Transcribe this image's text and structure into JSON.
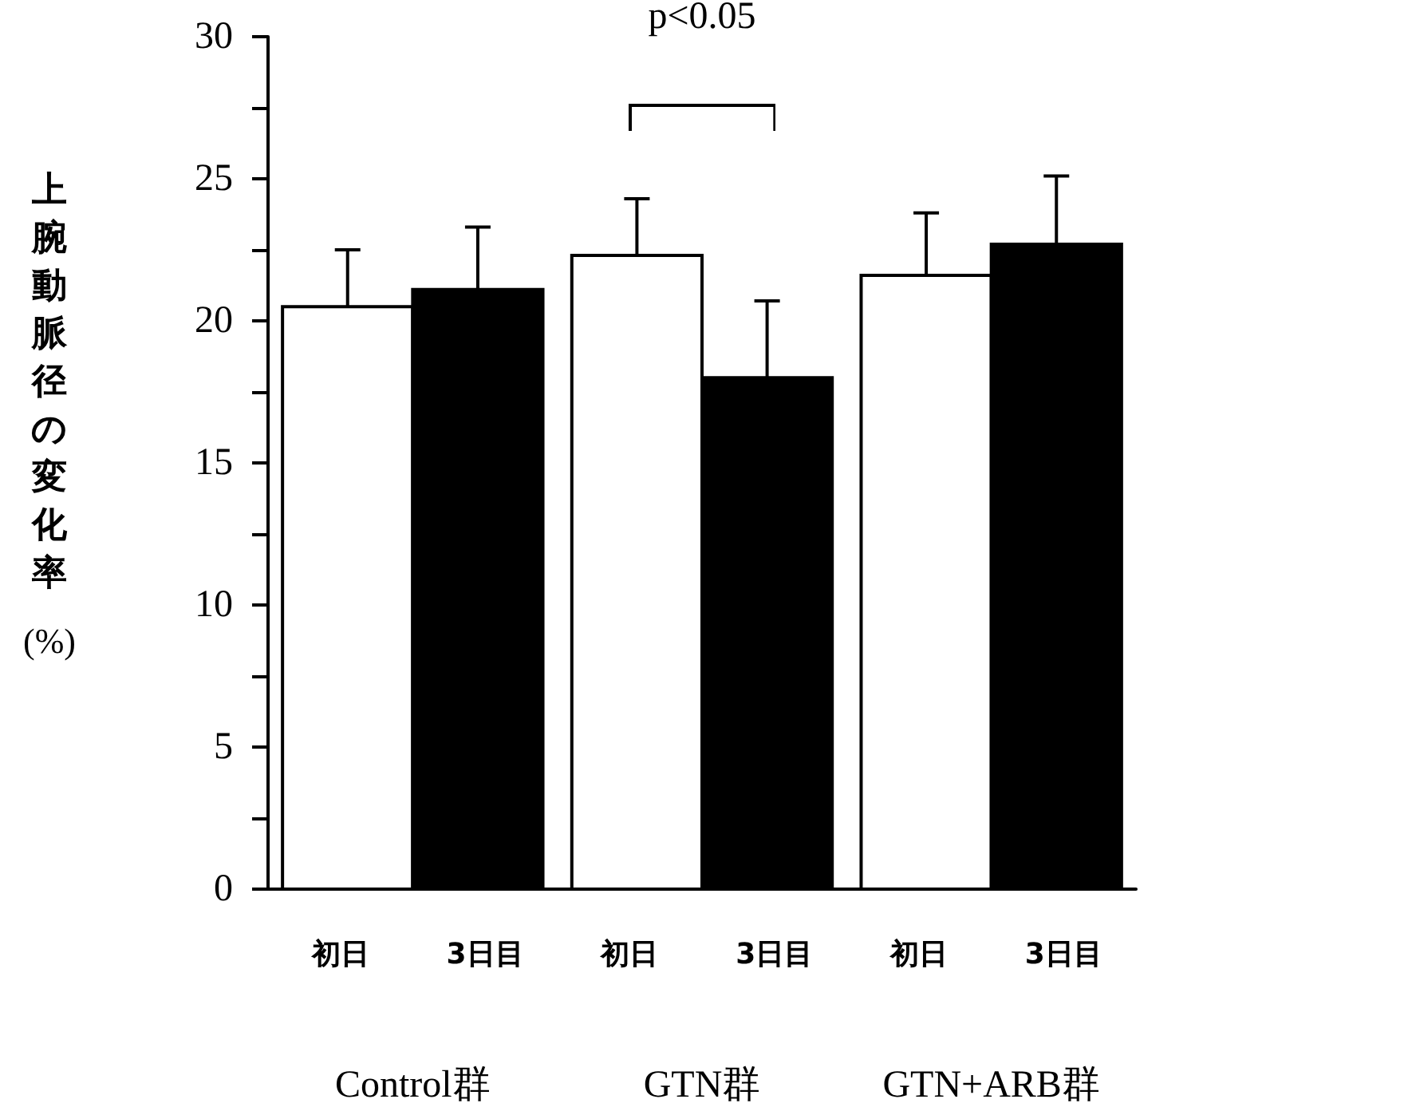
{
  "chart_data": {
    "type": "bar",
    "ylabel": "上腕動脈径の変化率 (%)",
    "categories": [
      "初日",
      "3日目",
      "初日",
      "3日目",
      "初日",
      "3日目"
    ],
    "values": [
      20.5,
      21.1,
      22.3,
      18.0,
      21.6,
      22.7
    ],
    "colors": [
      "#ffffff",
      "#000000",
      "#ffffff",
      "#000000",
      "#ffffff",
      "#000000"
    ],
    "errors": [
      [
        20.5,
        22.5
      ],
      [
        21.1,
        23.3
      ],
      [
        22.3,
        24.3
      ],
      [
        18.0,
        20.7
      ],
      [
        21.6,
        23.8
      ],
      [
        22.7,
        25.1
      ]
    ],
    "ylim": [
      0,
      30
    ],
    "yticks": [
      0,
      {
        "value": 2.5,
        "label": null
      },
      5,
      {
        "value": 7.5,
        "label": null
      },
      10,
      {
        "value": 12.5,
        "label": null
      },
      15,
      {
        "value": 17.5,
        "label": null
      },
      20,
      {
        "value": 22.5,
        "label": null
      },
      25,
      {
        "value": 27.5,
        "label": null
      },
      30
    ],
    "grid": false,
    "annotations": [
      "p<0.05",
      "Control群",
      "GTN群",
      "GTN+ARB群"
    ]
  }
}
